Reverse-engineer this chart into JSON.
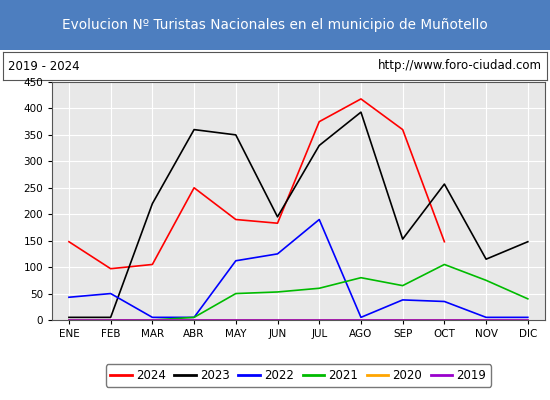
{
  "title": "Evolucion Nº Turistas Nacionales en el municipio de Muñotello",
  "subtitle_left": "2019 - 2024",
  "subtitle_right": "http://www.foro-ciudad.com",
  "title_bg_color": "#4d7ebf",
  "title_text_color": "#ffffff",
  "months": [
    "ENE",
    "FEB",
    "MAR",
    "ABR",
    "MAY",
    "JUN",
    "JUL",
    "AGO",
    "SEP",
    "OCT",
    "NOV",
    "DIC"
  ],
  "ylim": [
    0,
    450
  ],
  "yticks": [
    0,
    50,
    100,
    150,
    200,
    250,
    300,
    350,
    400,
    450
  ],
  "series": {
    "2024": {
      "color": "#ff0000",
      "values": [
        148,
        97,
        105,
        250,
        190,
        183,
        375,
        418,
        360,
        148,
        null,
        null
      ]
    },
    "2023": {
      "color": "#000000",
      "values": [
        5,
        5,
        220,
        360,
        350,
        195,
        330,
        393,
        153,
        257,
        115,
        148
      ]
    },
    "2022": {
      "color": "#0000ff",
      "values": [
        43,
        50,
        5,
        5,
        112,
        125,
        190,
        5,
        38,
        35,
        5,
        5
      ]
    },
    "2021": {
      "color": "#00bb00",
      "values": [
        0,
        0,
        0,
        5,
        50,
        53,
        60,
        80,
        65,
        105,
        75,
        40
      ]
    },
    "2020": {
      "color": "#ffa500",
      "values": [
        0,
        0,
        0,
        0,
        0,
        0,
        0,
        0,
        0,
        0,
        0,
        0
      ]
    },
    "2019": {
      "color": "#9900cc",
      "values": [
        0,
        0,
        0,
        0,
        0,
        0,
        0,
        0,
        0,
        0,
        0,
        0
      ]
    }
  },
  "bg_color": "#ffffff",
  "plot_bg_color": "#e8e8e8",
  "grid_color": "#ffffff",
  "border_color": "#555555",
  "legend_order": [
    "2024",
    "2023",
    "2022",
    "2021",
    "2020",
    "2019"
  ]
}
